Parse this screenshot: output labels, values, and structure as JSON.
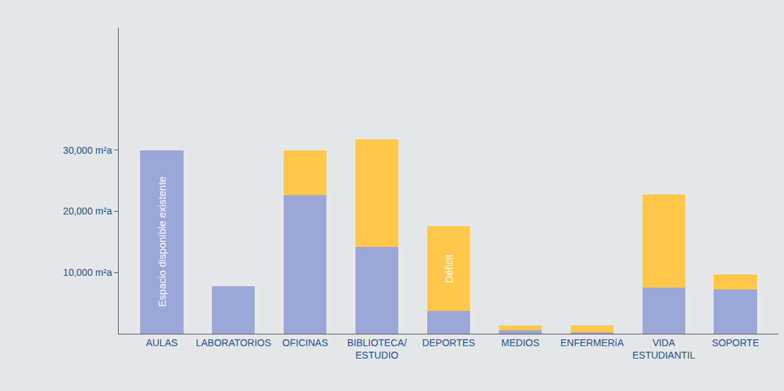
{
  "chart_data": {
    "type": "bar",
    "stacked": true,
    "categories": [
      "AULAS",
      "LABORATORIOS",
      "OFICINAS",
      "BIBLIOTECA/ ESTUDIO",
      "DEPORTES",
      "MEDIOS",
      "ENFERMERíA",
      "VIDA ESTUDIANTIL",
      "SOPORTE"
    ],
    "series": [
      {
        "name": "Espacio disponible existente",
        "color": "#9ba6d9",
        "values": [
          30000,
          7800,
          22600,
          14200,
          3700,
          600,
          200,
          7500,
          7200
        ]
      },
      {
        "name": "Déficit",
        "color": "#ffc84a",
        "values": [
          0,
          0,
          7300,
          17600,
          13900,
          750,
          1150,
          15200,
          2500
        ]
      }
    ],
    "annotations": [
      {
        "series": "Espacio disponible existente",
        "x": "AULAS"
      },
      {
        "series": "Déficit",
        "x": "DEPORTES"
      }
    ],
    "ylim": [
      0,
      50000
    ],
    "yticks": [
      {
        "value": 10000,
        "label": "10,000 m²a"
      },
      {
        "value": 20000,
        "label": "20,000 m²a"
      },
      {
        "value": 30000,
        "label": "30,000 m²a"
      }
    ],
    "grid": false
  }
}
